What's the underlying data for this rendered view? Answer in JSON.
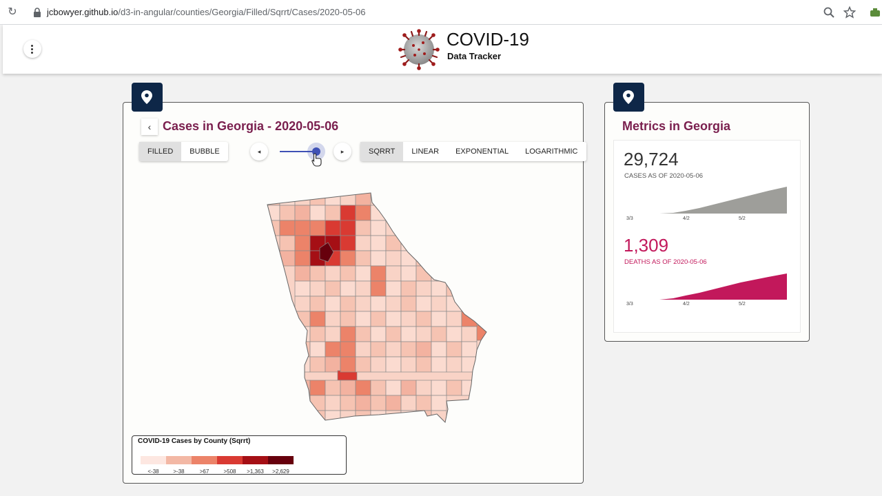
{
  "browser": {
    "url_host": "jcbowyer.github.io",
    "url_path": "/d3-in-angular/counties/Georgia/Filled/Sqrrt/Cases/2020-05-06"
  },
  "app": {
    "title": "COVID-19",
    "subtitle": "Data Tracker",
    "menu_icon": "more-vert-icon"
  },
  "map_panel": {
    "icon": "map-pin-icon",
    "back_icon": "chevron-left-icon",
    "title": "Cases in Georgia - 2020-05-06",
    "view_types": [
      {
        "label": "FILLED",
        "active": true
      },
      {
        "label": "BUBBLE",
        "active": false
      }
    ],
    "scales": [
      {
        "label": "SQRRT",
        "active": true
      },
      {
        "label": "LINEAR",
        "active": false
      },
      {
        "label": "EXPONENTIAL",
        "active": false
      },
      {
        "label": "LOGARITHMIC",
        "active": false
      }
    ],
    "prev_icon": "◂",
    "next_icon": "▸",
    "date_slider_position": 1.0
  },
  "legend": {
    "title": "COVID-19 Cases by County (Sqrrt)",
    "bins": [
      {
        "label": "<-38",
        "color": "#fde7e1"
      },
      {
        "label": ">-38",
        "color": "#f3b8a5"
      },
      {
        "label": ">67",
        "color": "#ec8369"
      },
      {
        "label": ">508",
        "color": "#d93a32"
      },
      {
        "label": ">1,363",
        "color": "#a50f15"
      },
      {
        "label": ">2,629",
        "color": "#67000d"
      }
    ]
  },
  "metrics_panel": {
    "icon": "map-pin-icon",
    "title": "Metrics in Georgia",
    "cases": {
      "value": "29,724",
      "label": "CASES AS OF 2020-05-06",
      "color": "#9e9e9a",
      "ticks": [
        "3/3",
        "4/2",
        "5/2"
      ]
    },
    "deaths": {
      "value": "1,309",
      "label": "DEATHS AS OF 2020-05-06",
      "color": "#c2185b",
      "ticks": [
        "3/3",
        "4/2",
        "5/2"
      ]
    }
  }
}
